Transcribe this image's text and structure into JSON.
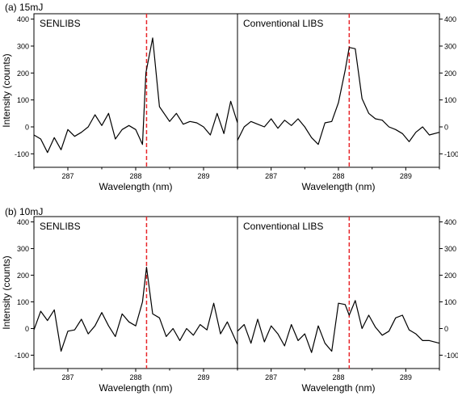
{
  "chart_data": [
    {
      "type": "line",
      "panel_label": "(a) 15mJ",
      "xlabel": "Wavelength (nm)",
      "ylabel": "Intensity (counts)",
      "xlim": [
        286.5,
        289.5
      ],
      "ylim": [
        -150,
        420
      ],
      "x_ticks": [
        287,
        288,
        289
      ],
      "y_ticks": [
        -100,
        0,
        100,
        200,
        300,
        400
      ],
      "reference_line_x": 288.16,
      "reference_line_color": "#e8262a",
      "line_color": "#000000",
      "subplots": [
        {
          "title": "SENLIBS",
          "x": [
            286.5,
            286.6,
            286.7,
            286.8,
            286.9,
            287.0,
            287.1,
            287.2,
            287.3,
            287.4,
            287.5,
            287.6,
            287.7,
            287.8,
            287.9,
            288.0,
            288.1,
            288.15,
            288.25,
            288.35,
            288.5,
            288.6,
            288.7,
            288.8,
            288.9,
            289.0,
            289.1,
            289.2,
            289.3,
            289.4,
            289.5
          ],
          "values": [
            -30,
            -45,
            -95,
            -40,
            -85,
            -10,
            -35,
            -20,
            0,
            45,
            5,
            50,
            -45,
            -10,
            5,
            -10,
            -65,
            200,
            330,
            75,
            20,
            50,
            10,
            20,
            15,
            0,
            -30,
            50,
            -25,
            95,
            15
          ]
        },
        {
          "title": "Conventional LIBS",
          "x": [
            286.5,
            286.6,
            286.7,
            286.8,
            286.9,
            287.0,
            287.1,
            287.2,
            287.3,
            287.4,
            287.5,
            287.6,
            287.7,
            287.8,
            287.9,
            288.0,
            288.1,
            288.16,
            288.25,
            288.35,
            288.45,
            288.55,
            288.65,
            288.75,
            288.85,
            288.95,
            289.05,
            289.15,
            289.25,
            289.35,
            289.5
          ],
          "values": [
            -50,
            0,
            20,
            10,
            0,
            30,
            -5,
            25,
            5,
            30,
            0,
            -40,
            -65,
            15,
            20,
            90,
            210,
            295,
            290,
            105,
            50,
            30,
            25,
            0,
            -10,
            -25,
            -55,
            -20,
            0,
            -30,
            -20
          ]
        }
      ]
    },
    {
      "type": "line",
      "panel_label": "(b) 10mJ",
      "xlabel": "Wavelength (nm)",
      "ylabel": "Intensity (counts)",
      "xlim": [
        286.5,
        289.5
      ],
      "ylim": [
        -150,
        420
      ],
      "x_ticks": [
        287,
        288,
        289
      ],
      "y_ticks": [
        -100,
        0,
        100,
        200,
        300,
        400
      ],
      "reference_line_x": 288.16,
      "reference_line_color": "#e8262a",
      "line_color": "#000000",
      "subplots": [
        {
          "title": "SENLIBS",
          "x": [
            286.5,
            286.6,
            286.7,
            286.8,
            286.9,
            287.0,
            287.1,
            287.2,
            287.3,
            287.4,
            287.5,
            287.6,
            287.7,
            287.8,
            287.9,
            288.0,
            288.1,
            288.16,
            288.25,
            288.35,
            288.45,
            288.55,
            288.65,
            288.75,
            288.85,
            288.95,
            289.05,
            289.15,
            289.25,
            289.35,
            289.5
          ],
          "values": [
            -5,
            65,
            30,
            70,
            -85,
            -10,
            -5,
            35,
            -20,
            10,
            60,
            10,
            -30,
            55,
            25,
            10,
            100,
            230,
            55,
            40,
            -30,
            0,
            -45,
            0,
            -25,
            15,
            -5,
            95,
            -20,
            25,
            -60
          ]
        },
        {
          "title": "Conventional LIBS",
          "x": [
            286.5,
            286.6,
            286.7,
            286.8,
            286.9,
            287.0,
            287.1,
            287.2,
            287.3,
            287.4,
            287.5,
            287.6,
            287.7,
            287.8,
            287.9,
            288.0,
            288.1,
            288.16,
            288.25,
            288.35,
            288.45,
            288.55,
            288.65,
            288.75,
            288.85,
            288.95,
            289.05,
            289.15,
            289.25,
            289.35,
            289.5
          ],
          "values": [
            -10,
            15,
            -55,
            35,
            -50,
            10,
            -20,
            -65,
            15,
            -45,
            -20,
            -90,
            10,
            -55,
            -85,
            95,
            90,
            50,
            105,
            0,
            50,
            5,
            -25,
            -10,
            40,
            50,
            -5,
            -20,
            -45,
            -45,
            -55
          ]
        }
      ]
    }
  ]
}
